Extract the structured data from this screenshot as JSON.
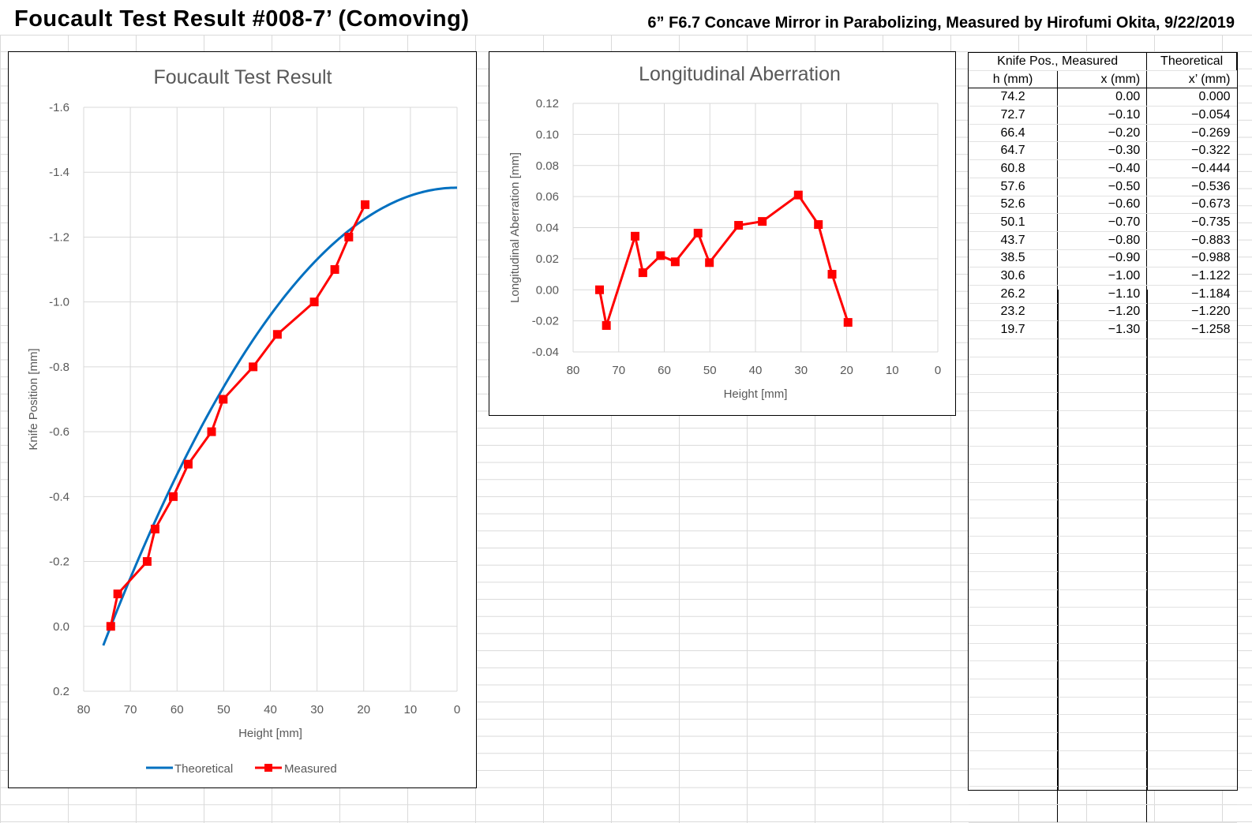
{
  "title": "Foucault Test Result #008-7’ (Comoving)",
  "subtitle": "6” F6.7 Concave Mirror in Parabolizing, Measured by Hirofumi Okita, 9/22/2019",
  "table": {
    "header1": [
      "Knife Pos., Measured",
      "Theoretical"
    ],
    "header2": [
      "h (mm)",
      "x (mm)",
      "x’ (mm)"
    ],
    "rows": [
      [
        "74.2",
        "0.00",
        "0.000"
      ],
      [
        "72.7",
        "−0.10",
        "−0.054"
      ],
      [
        "66.4",
        "−0.20",
        "−0.269"
      ],
      [
        "64.7",
        "−0.30",
        "−0.322"
      ],
      [
        "60.8",
        "−0.40",
        "−0.444"
      ],
      [
        "57.6",
        "−0.50",
        "−0.536"
      ],
      [
        "52.6",
        "−0.60",
        "−0.673"
      ],
      [
        "50.1",
        "−0.70",
        "−0.735"
      ],
      [
        "43.7",
        "−0.80",
        "−0.883"
      ],
      [
        "38.5",
        "−0.90",
        "−0.988"
      ],
      [
        "30.6",
        "−1.00",
        "−1.122"
      ],
      [
        "26.2",
        "−1.10",
        "−1.184"
      ],
      [
        "23.2",
        "−1.20",
        "−1.220"
      ],
      [
        "19.7",
        "−1.30",
        "−1.258"
      ]
    ]
  },
  "chart_data": [
    {
      "type": "line",
      "title": "Foucault Test Result",
      "xlabel": "Height [mm]",
      "ylabel": "Knife Position [mm]",
      "xlim": [
        80,
        0
      ],
      "ylim": [
        0.2,
        -1.6
      ],
      "xticks": [
        "80",
        "70",
        "60",
        "50",
        "40",
        "30",
        "20",
        "10",
        "0"
      ],
      "yticks": [
        "-1.6",
        "-1.4",
        "-1.2",
        "-1.0",
        "-0.8",
        "-0.6",
        "-0.4",
        "-0.2",
        "0.0",
        "0.2"
      ],
      "legend": [
        "Theoretical",
        "Measured"
      ],
      "legend_position": "bottom",
      "series": [
        {
          "name": "Theoretical",
          "color": "#0070C0",
          "formula": "x' = 0.0002456*(74.2^2 - h^2)*-1",
          "h_range": [
            75.8,
            0
          ]
        },
        {
          "name": "Measured",
          "color": "#FF0000",
          "x": [
            74.2,
            72.7,
            66.4,
            64.7,
            60.8,
            57.6,
            52.6,
            50.1,
            43.7,
            38.5,
            30.6,
            26.2,
            23.2,
            19.7
          ],
          "y": [
            0,
            -0.1,
            -0.2,
            -0.3,
            -0.4,
            -0.5,
            -0.6,
            -0.7,
            -0.8,
            -0.9,
            -1.0,
            -1.1,
            -1.2,
            -1.3
          ]
        }
      ]
    },
    {
      "type": "line",
      "title": "Longitudinal Aberration",
      "xlabel": "Height [mm]",
      "ylabel": "Longitudinal Aberration [mm]",
      "xlim": [
        80,
        0
      ],
      "ylim": [
        -0.04,
        0.12
      ],
      "xticks": [
        "80",
        "70",
        "60",
        "50",
        "40",
        "30",
        "20",
        "10",
        "0"
      ],
      "yticks": [
        "0.12",
        "0.10",
        "0.08",
        "0.06",
        "0.04",
        "0.02",
        "0.00",
        "-0.02",
        "-0.04"
      ],
      "series": [
        {
          "name": "Aberration",
          "color": "#FF0000",
          "x": [
            74.2,
            72.7,
            66.4,
            64.7,
            60.8,
            57.6,
            52.6,
            50.1,
            43.7,
            38.5,
            30.6,
            26.2,
            23.2,
            19.7
          ],
          "y": [
            0,
            -0.023,
            0.0345,
            0.011,
            0.022,
            0.018,
            0.0365,
            0.0175,
            0.0415,
            0.044,
            0.061,
            0.042,
            0.01,
            -0.021
          ]
        }
      ]
    }
  ]
}
